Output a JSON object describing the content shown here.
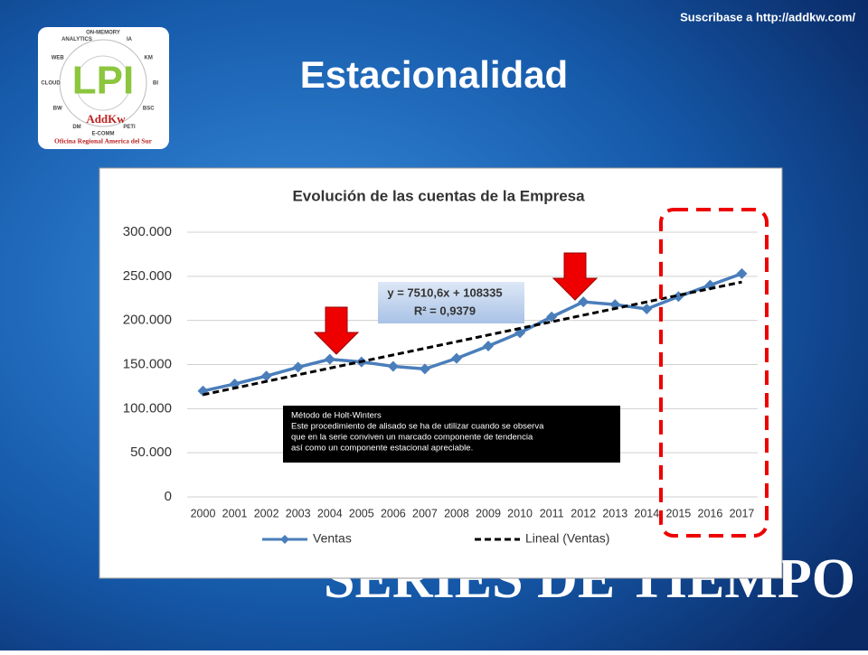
{
  "header": {
    "subscribe": "Suscribase a http://addkw.com/",
    "title": "Estacionalidad",
    "footer": "SERIES DE TIEMPO"
  },
  "logo": {
    "name": "LPI",
    "brand": "AddKw",
    "office": "Oficina Regional America del Sur",
    "ring": [
      "ON-MEMORY",
      "IA",
      "KM",
      "BI",
      "BSC",
      "PETI",
      "E-COMM",
      "DM",
      "BW",
      "CLOUD",
      "WEB",
      "ANALYTICS"
    ]
  },
  "chart_data": {
    "type": "line",
    "title": "Evolución de las cuentas de la Empresa",
    "categories": [
      "2000",
      "2001",
      "2002",
      "2003",
      "2004",
      "2005",
      "2006",
      "2007",
      "2008",
      "2009",
      "2010",
      "2011",
      "2012",
      "2013",
      "2014",
      "2015",
      "2016",
      "2017"
    ],
    "series": [
      {
        "name": "Ventas",
        "color": "#4a7ebb",
        "marker": "diamond",
        "values": [
          120000,
          128000,
          137000,
          147000,
          156000,
          153000,
          148000,
          145000,
          157000,
          171000,
          186000,
          204000,
          221000,
          218000,
          213000,
          227000,
          240000,
          253000
        ]
      },
      {
        "name": "Lineal (Ventas)",
        "color": "#000000",
        "dashed": true,
        "values": [
          115846,
          123356,
          130867,
          138377,
          145888,
          153399,
          160909,
          168420,
          175930,
          183441,
          190952,
          198462,
          205973,
          213483,
          220994,
          228505,
          236015,
          243526
        ]
      }
    ],
    "ylim": [
      0,
      300000
    ],
    "yticks": [
      0,
      {
        "value": 50000,
        "label": "50.000"
      },
      {
        "value": 100000,
        "label": "100.000"
      },
      {
        "value": 150000,
        "label": "150.000"
      },
      {
        "value": 200000,
        "label": "200.000"
      },
      {
        "value": 250000,
        "label": "250.000"
      },
      {
        "value": 300000,
        "label": "300.000"
      }
    ],
    "grid": true,
    "legend": "bottom",
    "equation": [
      "y = 7510,6x + 108335",
      "R² = 0,9379"
    ],
    "note": {
      "title": "Método de Holt-Winters",
      "lines": [
        "Este procedimiento de alisado se ha de utilizar cuando se observa",
        "que en la serie conviven un marcado componente de tendencia",
        "así como un componente estacional apreciable."
      ]
    }
  }
}
